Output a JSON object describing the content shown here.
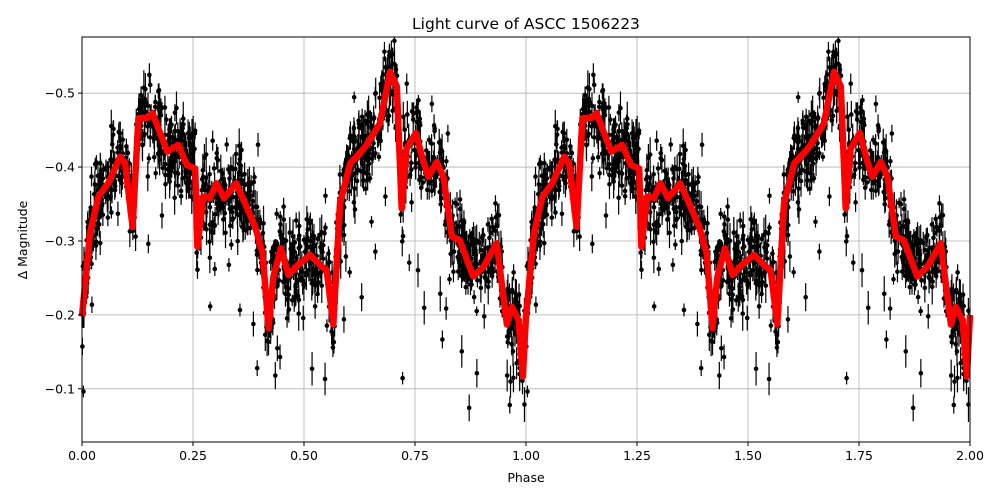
{
  "chart_data": {
    "type": "scatter",
    "title": "Light curve of ASCC 1506223",
    "xlabel": "Phase",
    "ylabel": "Δ Magnitude",
    "xlim": [
      0,
      2
    ],
    "ylim": [
      -0.576,
      -0.028
    ],
    "y_inverted": true,
    "grid": true,
    "xticks": [
      "0.00",
      "0.25",
      "0.50",
      "0.75",
      "1.00",
      "1.25",
      "1.50",
      "1.75",
      "2.00"
    ],
    "xtick_values": [
      0,
      0.25,
      0.5,
      0.75,
      1,
      1.25,
      1.5,
      1.75,
      2
    ],
    "yticks": [
      "−0.5",
      "−0.4",
      "−0.3",
      "−0.2",
      "−0.1"
    ],
    "ytick_values": [
      -0.5,
      -0.4,
      -0.3,
      -0.2,
      -0.1
    ],
    "colors": {
      "points": "#000000",
      "model": "#ff0000",
      "grid": "#b0b0b0"
    },
    "series": [
      {
        "kind": "errorbar-points",
        "color": "#000000",
        "description_visible": "phase-folded photometry, repeated over two cycles"
      },
      {
        "kind": "line",
        "color": "#ff0000",
        "phase": [
          0.0,
          0.018,
          0.037,
          0.059,
          0.086,
          0.097,
          0.114,
          0.127,
          0.149,
          0.159,
          0.176,
          0.192,
          0.217,
          0.236,
          0.255,
          0.26,
          0.273,
          0.288,
          0.303,
          0.32,
          0.347,
          0.371,
          0.39,
          0.407,
          0.42,
          0.431,
          0.448,
          0.465,
          0.487,
          0.514,
          0.54,
          0.551,
          0.566,
          0.581,
          0.604,
          0.626,
          0.641,
          0.671,
          0.694,
          0.709,
          0.72,
          0.731,
          0.752,
          0.769,
          0.78,
          0.799,
          0.814,
          0.833,
          0.851,
          0.881,
          0.904,
          0.934,
          0.957,
          0.968,
          0.983,
          0.993,
          1.0
        ],
        "magnitude": [
          -0.198,
          -0.311,
          -0.36,
          -0.378,
          -0.414,
          -0.405,
          -0.319,
          -0.466,
          -0.467,
          -0.473,
          -0.446,
          -0.421,
          -0.43,
          -0.403,
          -0.398,
          -0.292,
          -0.36,
          -0.358,
          -0.378,
          -0.358,
          -0.378,
          -0.346,
          -0.319,
          -0.283,
          -0.182,
          -0.252,
          -0.29,
          -0.254,
          -0.268,
          -0.281,
          -0.265,
          -0.261,
          -0.187,
          -0.351,
          -0.405,
          -0.419,
          -0.43,
          -0.459,
          -0.529,
          -0.509,
          -0.344,
          -0.425,
          -0.446,
          -0.407,
          -0.387,
          -0.407,
          -0.387,
          -0.306,
          -0.301,
          -0.252,
          -0.265,
          -0.297,
          -0.187,
          -0.211,
          -0.193,
          -0.117,
          -0.2
        ]
      }
    ]
  }
}
